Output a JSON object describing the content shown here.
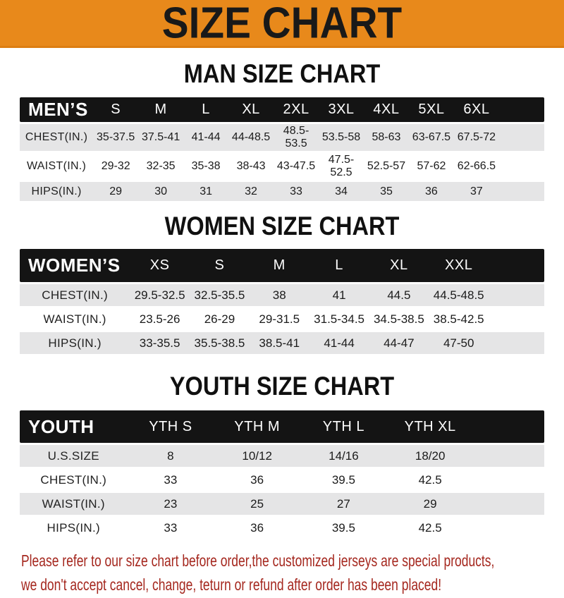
{
  "colors": {
    "banner_bg": "#E8891B",
    "banner_edge": "#DD7E12",
    "banner_text": "#191919",
    "header_bg": "#141414",
    "row_alt": "#E5E5E6",
    "footer_text": "#A5281F"
  },
  "banner": {
    "title": "SIZE CHART"
  },
  "sections": [
    {
      "heading": "MAN SIZE CHART",
      "table_label": "MEN’S",
      "columns": [
        "S",
        "M",
        "L",
        "XL",
        "2XL",
        "3XL",
        "4XL",
        "5XL",
        "6XL"
      ],
      "rows": [
        {
          "label": "CHEST(IN.)",
          "values": [
            "35-37.5",
            "37.5-41",
            "41-44",
            "44-48.5",
            "48.5-53.5",
            "53.5-58",
            "58-63",
            "63-67.5",
            "67.5-72"
          ]
        },
        {
          "label": "WAIST(IN.)",
          "values": [
            "29-32",
            "32-35",
            "35-38",
            "38-43",
            "43-47.5",
            "47.5-52.5",
            "52.5-57",
            "57-62",
            "62-66.5"
          ]
        },
        {
          "label": "HIPS(IN.)",
          "values": [
            "29",
            "30",
            "31",
            "32",
            "33",
            "34",
            "35",
            "36",
            "37"
          ]
        }
      ]
    },
    {
      "heading": "WOMEN SIZE CHART",
      "table_label": "WOMEN’S",
      "columns": [
        "XS",
        "S",
        "M",
        "L",
        "XL",
        "XXL"
      ],
      "rows": [
        {
          "label": "CHEST(IN.)",
          "values": [
            "29.5-32.5",
            "32.5-35.5",
            "38",
            "41",
            "44.5",
            "44.5-48.5"
          ]
        },
        {
          "label": "WAIST(IN.)",
          "values": [
            "23.5-26",
            "26-29",
            "29-31.5",
            "31.5-34.5",
            "34.5-38.5",
            "38.5-42.5"
          ]
        },
        {
          "label": "HIPS(IN.)",
          "values": [
            "33-35.5",
            "35.5-38.5",
            "38.5-41",
            "41-44",
            "44-47",
            "47-50"
          ]
        }
      ]
    },
    {
      "heading": "YOUTH SIZE CHART",
      "table_label": "YOUTH",
      "columns": [
        "YTH S",
        "YTH M",
        "YTH L",
        "YTH XL"
      ],
      "rows": [
        {
          "label": "U.S.SIZE",
          "values": [
            "8",
            "10/12",
            "14/16",
            "18/20"
          ]
        },
        {
          "label": "CHEST(IN.)",
          "values": [
            "33",
            "36",
            "39.5",
            "42.5"
          ]
        },
        {
          "label": "WAIST(IN.)",
          "values": [
            "23",
            "25",
            "27",
            "29"
          ]
        },
        {
          "label": "HIPS(IN.)",
          "values": [
            "33",
            "36",
            "39.5",
            "42.5"
          ]
        }
      ]
    }
  ],
  "footer": {
    "lines": [
      "Please refer to our size chart before order,the customized jerseys are special products,",
      "we don't accept cancel, change, teturn or refund after order has been placed!"
    ]
  }
}
